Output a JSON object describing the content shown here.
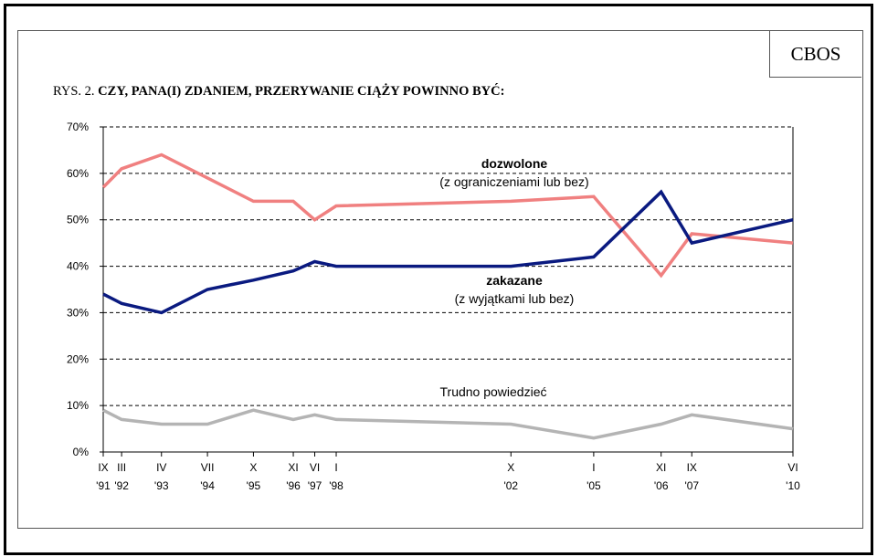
{
  "page": {
    "logo": "CBOS",
    "title_prefix": "RYS. 2.",
    "title_main": "CZY, PANA(I) ZDANIEM, PRZERYWANIE CIĄŻY POWINNO BYĆ:"
  },
  "chart_data": {
    "type": "line",
    "title": "RYS. 2. CZY, PANA(I) ZDANIEM, PRZERYWANIE CIĄŻY POWINNO BYĆ:",
    "ylim": [
      0,
      70
    ],
    "yticks": [
      "0%",
      "10%",
      "20%",
      "30%",
      "40%",
      "50%",
      "60%",
      "70%"
    ],
    "grid": "dashed horizontal",
    "x": [
      "1991-09",
      "1992-03",
      "1993-04",
      "1994-07",
      "1995-10",
      "1996-11",
      "1997-06",
      "1998-01",
      "2002-10",
      "2005-01",
      "2006-11",
      "2007-09",
      "2010-06"
    ],
    "x_tick_labels": [
      {
        "month": "IX",
        "year": "'91"
      },
      {
        "month": "III",
        "year": "'92"
      },
      {
        "month": "IV",
        "year": "'93"
      },
      {
        "month": "VII",
        "year": "'94"
      },
      {
        "month": "X",
        "year": "'95"
      },
      {
        "month": "XI",
        "year": "'96"
      },
      {
        "month": "VI",
        "year": "'97"
      },
      {
        "month": "I",
        "year": "'98"
      },
      {
        "month": "X",
        "year": "'02"
      },
      {
        "month": "I",
        "year": "'05"
      },
      {
        "month": "XI",
        "year": "'06"
      },
      {
        "month": "IX",
        "year": "'07"
      },
      {
        "month": "VI",
        "year": "'10"
      }
    ],
    "series": [
      {
        "name": "dozwolone",
        "sublabel": "(z ograniczeniami lub bez)",
        "color": "#f08080",
        "values": [
          57,
          61,
          64,
          59,
          54,
          54,
          50,
          53,
          54,
          55,
          38,
          47,
          45
        ]
      },
      {
        "name": "zakazane",
        "sublabel": "(z  wyjątkami lub bez)",
        "color": "#0a1a80",
        "values": [
          34,
          32,
          30,
          35,
          37,
          39,
          41,
          40,
          40,
          42,
          56,
          45,
          50
        ]
      },
      {
        "name": "Trudno powiedzieć",
        "sublabel": "",
        "color": "#b4b4b4",
        "values": [
          9,
          7,
          6,
          6,
          9,
          7,
          8,
          7,
          6,
          3,
          6,
          8,
          5
        ]
      }
    ]
  }
}
